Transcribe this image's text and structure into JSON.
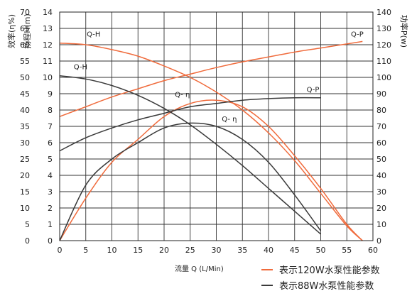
{
  "chart_data": {
    "type": "line",
    "xlabel": "流量 Q (L/Min)",
    "xlim": [
      0,
      60
    ],
    "x_ticks": [
      0,
      5,
      10,
      15,
      20,
      25,
      30,
      35,
      40,
      45,
      50,
      55,
      60
    ],
    "y_axes": {
      "efficiency": {
        "label": "效率(η%)",
        "lim": [
          0,
          70
        ],
        "ticks": [
          0,
          5,
          10,
          15,
          20,
          25,
          30,
          35,
          40,
          45,
          50,
          55,
          60,
          65,
          70
        ]
      },
      "head": {
        "label": "扬程H(m)",
        "lim": [
          0,
          14
        ],
        "ticks": [
          0,
          1,
          2,
          3,
          4,
          5,
          6,
          7,
          8,
          9,
          10,
          11,
          12,
          13,
          14
        ]
      },
      "power": {
        "label": "功率P(w)",
        "lim": [
          0,
          140
        ],
        "ticks": [
          0,
          10,
          20,
          30,
          40,
          50,
          60,
          70,
          80,
          90,
          100,
          110,
          120,
          130,
          140
        ]
      }
    },
    "grid": true,
    "legend_position": "bottom-right",
    "legend": [
      {
        "label": "表示120W水泵性能参数",
        "color": "#f06b3c"
      },
      {
        "label": "表示88W水泵性能参数",
        "color": "#3a3a3a"
      }
    ],
    "series": [
      {
        "name": "Q-H",
        "pump": "120W",
        "axis": "head",
        "color": "#f06b3c",
        "x": [
          0,
          5,
          10,
          15,
          20,
          25,
          30,
          35,
          40,
          45,
          50,
          55,
          58
        ],
        "y": [
          12.1,
          12.0,
          11.7,
          11.3,
          10.7,
          10.0,
          9.1,
          8.0,
          6.6,
          4.9,
          2.9,
          0.9,
          0
        ]
      },
      {
        "name": "Q-P",
        "pump": "120W",
        "axis": "power",
        "color": "#f06b3c",
        "x": [
          0,
          5,
          10,
          15,
          20,
          25,
          30,
          35,
          40,
          45,
          50,
          55,
          58
        ],
        "y": [
          76,
          82,
          88,
          93,
          98,
          102,
          106,
          109.5,
          112.5,
          115.5,
          118,
          120.5,
          122
        ]
      },
      {
        "name": "Q-η",
        "pump": "120W",
        "axis": "efficiency",
        "color": "#f06b3c",
        "x": [
          0,
          5,
          10,
          15,
          20,
          25,
          30,
          35,
          40,
          45,
          50,
          55,
          58
        ],
        "y": [
          0,
          13,
          24,
          31,
          38,
          42,
          43,
          41,
          35,
          26,
          16,
          5,
          0
        ]
      },
      {
        "name": "Q-H",
        "pump": "88W",
        "axis": "head",
        "color": "#3a3a3a",
        "x": [
          0,
          5,
          10,
          15,
          20,
          25,
          30,
          35,
          40,
          45,
          50
        ],
        "y": [
          10.1,
          9.9,
          9.5,
          8.9,
          8.1,
          7.1,
          5.9,
          4.6,
          3.2,
          1.8,
          0.4
        ]
      },
      {
        "name": "Q-P",
        "pump": "88W",
        "axis": "power",
        "color": "#3a3a3a",
        "x": [
          0,
          5,
          10,
          15,
          20,
          25,
          30,
          35,
          40,
          45,
          50
        ],
        "y": [
          55,
          63,
          69,
          74,
          78,
          82,
          84,
          86,
          87,
          87.5,
          87.5
        ]
      },
      {
        "name": "Q-η",
        "pump": "88W",
        "axis": "efficiency",
        "color": "#3a3a3a",
        "x": [
          0,
          5,
          10,
          15,
          20,
          25,
          30,
          35,
          40,
          45,
          50
        ],
        "y": [
          0,
          17,
          25,
          30,
          34.5,
          36,
          35,
          31,
          24,
          14,
          3
        ]
      }
    ],
    "annotations": [
      {
        "text": "Q-H",
        "x": 6.5,
        "y_axis": "head",
        "y": 12.5
      },
      {
        "text": "Q-H",
        "x": 4,
        "y_axis": "head",
        "y": 10.5
      },
      {
        "text": "Q-P",
        "x": 57,
        "y_axis": "head",
        "y": 12.5
      },
      {
        "text": "Q-P",
        "x": 48.5,
        "y_axis": "head",
        "y": 9.1
      },
      {
        "text": "Q- η",
        "x": 23.5,
        "y_axis": "head",
        "y": 8.8
      },
      {
        "text": "Q- η",
        "x": 32.5,
        "y_axis": "head",
        "y": 7.3
      }
    ]
  }
}
